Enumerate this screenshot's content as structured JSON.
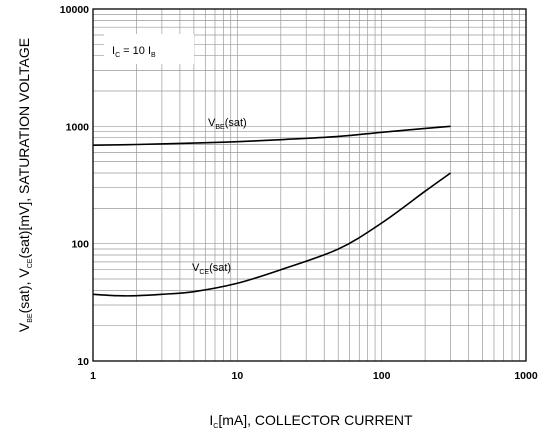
{
  "chart_data": {
    "type": "line",
    "x_scale": "log",
    "y_scale": "log",
    "xlim": [
      1,
      1000
    ],
    "ylim": [
      10,
      10000
    ],
    "x_ticks": [
      "1",
      "10",
      "100",
      "1000"
    ],
    "y_ticks": [
      "10",
      "100",
      "1000",
      "10000"
    ],
    "grid": true,
    "xlabel": {
      "main": "I",
      "sub": "C",
      "rest": "[mA], COLLECTOR CURRENT"
    },
    "ylabel": {
      "p1": "V",
      "s1": "BE",
      "p2": "(sat), V",
      "s2": "CE",
      "p3": "(sat)[mV], SATURATION VOLTAGE"
    },
    "annotation": {
      "p1": "I",
      "s1": "C",
      "p2": " = 10 I",
      "s2": "B"
    },
    "series": [
      {
        "label_main": "V",
        "label_sub": "BE",
        "label_rest": "(sat)",
        "x": [
          1,
          2,
          5,
          10,
          20,
          50,
          100,
          200,
          300
        ],
        "y": [
          690,
          700,
          720,
          740,
          770,
          820,
          890,
          960,
          1000
        ]
      },
      {
        "label_main": "V",
        "label_sub": "CE",
        "label_rest": "(sat)",
        "x": [
          1,
          1.5,
          2,
          3,
          5,
          10,
          20,
          50,
          100,
          200,
          300
        ],
        "y": [
          37,
          36,
          36,
          37,
          39,
          46,
          60,
          90,
          150,
          280,
          400
        ]
      }
    ]
  }
}
